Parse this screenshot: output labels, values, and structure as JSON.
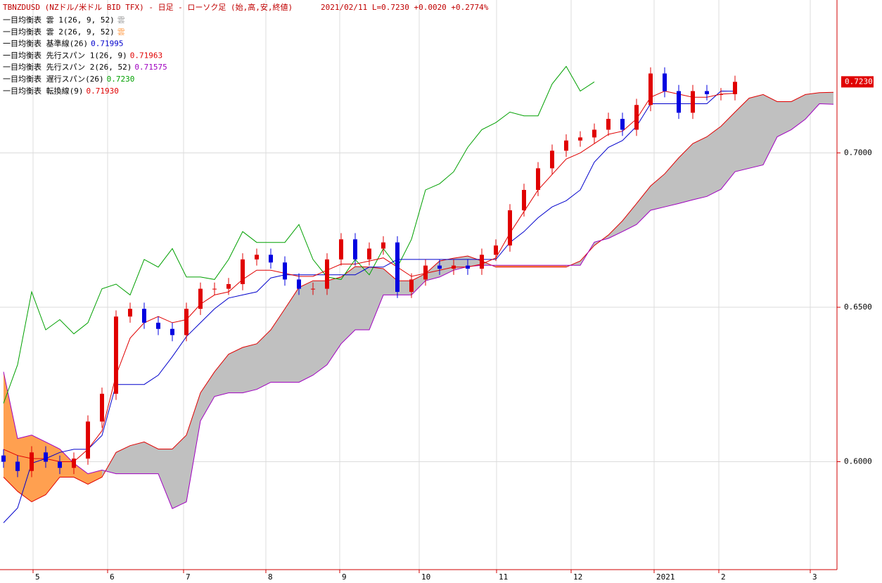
{
  "chart_data": {
    "type": "candlestick",
    "title": "TBNZDUSD (NZドル/米ドル BID TFX) - 日足 - ローソク足 (始,高,安,終値)",
    "subtitle": "2021/02/11 L=0.7230 +0.0020 +0.2774%",
    "x": [
      0,
      1,
      2,
      3,
      4,
      5,
      6,
      7,
      8,
      9,
      10,
      11,
      12,
      13,
      14,
      15,
      16,
      17,
      18,
      19,
      20,
      21,
      22,
      23,
      24,
      25,
      26,
      27,
      28,
      29,
      30,
      31,
      32,
      33,
      34,
      35,
      36,
      37,
      38,
      39,
      40,
      41,
      42,
      43,
      44,
      45,
      46,
      47,
      48,
      49,
      50,
      51,
      52,
      53,
      54,
      55,
      56,
      57,
      58,
      59
    ],
    "xlim": [
      0,
      59
    ],
    "xticks": [
      {
        "value": 2.1,
        "label": "5"
      },
      {
        "value": 7.4,
        "label": "6"
      },
      {
        "value": 12.8,
        "label": "7"
      },
      {
        "value": 18.65,
        "label": "8"
      },
      {
        "value": 23.9,
        "label": "9"
      },
      {
        "value": 29.55,
        "label": "10"
      },
      {
        "value": 35.05,
        "label": "11"
      },
      {
        "value": 40.35,
        "label": "12"
      },
      {
        "value": 46.25,
        "label": "2021"
      },
      {
        "value": 50.85,
        "label": "2"
      },
      {
        "value": 57.35,
        "label": "3"
      }
    ],
    "ylim": [
      0.5655,
      0.7495
    ],
    "yticks": [
      {
        "value": 0.6,
        "label": "0.6000"
      },
      {
        "value": 0.65,
        "label": "0.6500"
      },
      {
        "value": 0.7,
        "label": "0.7000"
      }
    ],
    "grid": true,
    "up_color": "#e00000",
    "down_color": "#0000e0",
    "last_price": {
      "value": 0.723,
      "label": "0.7230"
    },
    "open": [
      0.602,
      0.6,
      0.597,
      0.603,
      0.6,
      0.598,
      0.601,
      0.613,
      0.622,
      0.647,
      0.6495,
      0.645,
      0.643,
      0.641,
      0.6495,
      0.656,
      0.656,
      0.6575,
      0.6655,
      0.667,
      0.6645,
      0.659,
      0.656,
      0.656,
      0.6655,
      0.672,
      0.6655,
      0.669,
      0.671,
      0.655,
      0.659,
      0.6635,
      0.6625,
      0.6635,
      0.6625,
      0.667,
      0.67,
      0.6814,
      0.688,
      0.695,
      0.7007,
      0.704,
      0.705,
      0.7075,
      0.711,
      0.7075,
      0.7155,
      0.7257,
      0.72,
      0.713,
      0.72,
      0.719,
      0.719,
      null,
      null,
      null,
      null,
      null,
      null,
      null
    ],
    "high": [
      0.604,
      0.602,
      0.605,
      0.605,
      0.602,
      0.603,
      0.615,
      0.624,
      0.649,
      0.6515,
      0.6515,
      0.647,
      0.645,
      0.6515,
      0.658,
      0.658,
      0.6595,
      0.6675,
      0.669,
      0.669,
      0.6665,
      0.661,
      0.658,
      0.6675,
      0.674,
      0.674,
      0.671,
      0.673,
      0.673,
      0.661,
      0.6655,
      0.6655,
      0.6655,
      0.6655,
      0.669,
      0.672,
      0.6834,
      0.69,
      0.697,
      0.7027,
      0.706,
      0.707,
      0.7095,
      0.713,
      0.713,
      0.7175,
      0.7277,
      0.7277,
      0.722,
      0.722,
      0.722,
      0.721,
      0.725,
      null,
      null,
      null,
      null,
      null,
      null,
      null
    ],
    "low": [
      0.598,
      0.595,
      0.595,
      0.598,
      0.596,
      0.596,
      0.599,
      0.611,
      0.62,
      0.645,
      0.643,
      0.641,
      0.639,
      0.639,
      0.6475,
      0.654,
      0.654,
      0.6555,
      0.6635,
      0.6625,
      0.657,
      0.654,
      0.654,
      0.654,
      0.6635,
      0.6635,
      0.6635,
      0.667,
      0.653,
      0.653,
      0.657,
      0.6605,
      0.6605,
      0.6605,
      0.6605,
      0.665,
      0.668,
      0.6794,
      0.686,
      0.693,
      0.6987,
      0.702,
      0.703,
      0.7055,
      0.7055,
      0.7055,
      0.7135,
      0.718,
      0.711,
      0.711,
      0.717,
      0.717,
      0.717,
      null,
      null,
      null,
      null,
      null,
      null,
      null
    ],
    "close": [
      0.6,
      0.597,
      0.603,
      0.6,
      0.598,
      0.601,
      0.613,
      0.622,
      0.647,
      0.6495,
      0.645,
      0.643,
      0.641,
      0.6495,
      0.656,
      0.656,
      0.6575,
      0.6655,
      0.667,
      0.6645,
      0.659,
      0.656,
      0.656,
      0.6655,
      0.672,
      0.6655,
      0.669,
      0.671,
      0.655,
      0.659,
      0.6635,
      0.6625,
      0.6635,
      0.6625,
      0.667,
      0.67,
      0.6814,
      0.688,
      0.695,
      0.7007,
      0.704,
      0.705,
      0.7075,
      0.711,
      0.7075,
      0.7155,
      0.7257,
      0.72,
      0.713,
      0.72,
      0.719,
      0.719,
      0.723,
      null,
      null,
      null,
      null,
      null,
      null,
      null
    ],
    "cloud": [
      {
        "name": "一目均衡表 雲 1(26, 9, 52)",
        "mark": "雲",
        "color": "#c0c0c0"
      },
      {
        "name": "一目均衡表 雲 2(26, 9, 52)",
        "mark": "雲",
        "color": "#ffa050"
      }
    ],
    "series": [
      {
        "name": "一目均衡表 基準線(26)",
        "color": "#0000cc",
        "last_label": "0.71995",
        "values": [
          0.5802,
          0.585,
          0.5995,
          0.601,
          0.603,
          0.604,
          0.604,
          0.6085,
          0.625,
          0.625,
          0.625,
          0.628,
          0.634,
          0.6405,
          0.645,
          0.6495,
          0.653,
          0.654,
          0.655,
          0.6595,
          0.6605,
          0.6605,
          0.6605,
          0.6605,
          0.6605,
          0.6605,
          0.663,
          0.663,
          0.6655,
          0.6655,
          0.6655,
          0.6655,
          0.6655,
          0.6655,
          0.6655,
          0.6655,
          0.671,
          0.6745,
          0.679,
          0.6825,
          0.6845,
          0.688,
          0.697,
          0.7018,
          0.704,
          0.7086,
          0.7159,
          0.7159,
          0.7159,
          0.7159,
          0.7159,
          0.72,
          0.71995,
          null,
          null,
          null,
          null,
          null,
          null,
          null
        ]
      },
      {
        "name": "一目均衡表 先行スパン 1(26, 9)",
        "color": "#e00000",
        "last_label": "0.71963",
        "values": [
          0.595,
          0.5904,
          0.587,
          0.5893,
          0.595,
          0.595,
          0.5927,
          0.595,
          0.603,
          0.6052,
          0.6064,
          0.6041,
          0.6041,
          0.6086,
          0.6223,
          0.6291,
          0.6348,
          0.637,
          0.6382,
          0.6427,
          0.6495,
          0.6564,
          0.6586,
          0.6586,
          0.6598,
          0.6632,
          0.663,
          0.6625,
          0.6586,
          0.6586,
          0.6609,
          0.665,
          0.6659,
          0.6666,
          0.665,
          0.663,
          0.663,
          0.663,
          0.663,
          0.663,
          0.663,
          0.665,
          0.67,
          0.6734,
          0.678,
          0.6836,
          0.6893,
          0.6932,
          0.6984,
          0.703,
          0.7052,
          0.7086,
          0.7132,
          0.7177,
          0.7189,
          0.7166,
          0.7166,
          0.7189,
          0.7195,
          0.71963
        ]
      },
      {
        "name": "一目均衡表 先行スパン 2(26, 52)",
        "color": "#a000c0",
        "last_label": "0.71575",
        "values": [
          0.6291,
          0.6075,
          0.6086,
          0.6064,
          0.6041,
          0.5995,
          0.5961,
          0.5973,
          0.5961,
          0.5961,
          0.5961,
          0.5961,
          0.5848,
          0.587,
          0.6132,
          0.6211,
          0.6223,
          0.6223,
          0.6234,
          0.6257,
          0.6257,
          0.6257,
          0.628,
          0.6314,
          0.6382,
          0.6427,
          0.6427,
          0.654,
          0.654,
          0.654,
          0.6586,
          0.6598,
          0.662,
          0.6632,
          0.6636,
          0.6636,
          0.6636,
          0.6636,
          0.6636,
          0.6636,
          0.6636,
          0.6636,
          0.6711,
          0.6723,
          0.6745,
          0.6768,
          0.6814,
          0.6825,
          0.6836,
          0.6848,
          0.6859,
          0.6882,
          0.6939,
          0.695,
          0.6961,
          0.7052,
          0.7075,
          0.7109,
          0.7159,
          0.71575
        ]
      },
      {
        "name": "一目均衡表 遅行スパン(26)",
        "color": "#00a000",
        "last_label": "0.7230",
        "values": [
          0.6189,
          0.6314,
          0.655,
          0.6427,
          0.646,
          0.6414,
          0.645,
          0.656,
          0.6575,
          0.654,
          0.6655,
          0.663,
          0.669,
          0.6598,
          0.6598,
          0.659,
          0.6655,
          0.6745,
          0.671,
          0.671,
          0.671,
          0.6768,
          0.6655,
          0.6598,
          0.659,
          0.6655,
          0.6605,
          0.669,
          0.663,
          0.672,
          0.688,
          0.69,
          0.6939,
          0.7018,
          0.7075,
          0.7098,
          0.7132,
          0.712,
          0.712,
          0.7223,
          0.728,
          0.72,
          0.723,
          null,
          null,
          null,
          null,
          null,
          null,
          null,
          null,
          null,
          null,
          null,
          null,
          null,
          null,
          null,
          null,
          null
        ]
      },
      {
        "name": "一目均衡表 転換線(9)",
        "color": "#e00000",
        "last_label": "0.71930",
        "values": [
          0.604,
          0.602,
          0.601,
          0.601,
          0.6,
          0.6,
          0.604,
          0.61,
          0.628,
          0.64,
          0.645,
          0.647,
          0.645,
          0.646,
          0.651,
          0.654,
          0.655,
          0.659,
          0.662,
          0.662,
          0.661,
          0.66,
          0.66,
          0.662,
          0.664,
          0.664,
          0.665,
          0.666,
          0.663,
          0.66,
          0.661,
          0.662,
          0.663,
          0.663,
          0.664,
          0.666,
          0.674,
          0.681,
          0.688,
          0.693,
          0.698,
          0.7,
          0.703,
          0.706,
          0.707,
          0.711,
          0.718,
          0.72,
          0.719,
          0.718,
          0.718,
          0.719,
          0.7193,
          null,
          null,
          null,
          null,
          null,
          null,
          null
        ]
      }
    ]
  }
}
